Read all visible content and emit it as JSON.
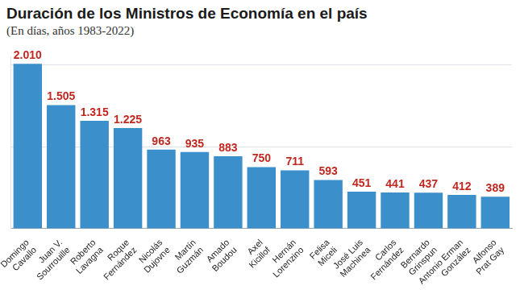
{
  "chart_data": {
    "type": "bar",
    "title": "Duración de los Ministros de Economía en el país",
    "subtitle": "(En días, años 1983-2022)",
    "categories": [
      [
        "Domingo",
        "Cavallo"
      ],
      [
        "Juan V.",
        "Sourrouille"
      ],
      [
        "Roberto",
        "Lavagna"
      ],
      [
        "Roque",
        "Fernández"
      ],
      [
        "Nicolás",
        "Dujovne"
      ],
      [
        "Martín",
        "Guzmán"
      ],
      [
        "Amado",
        "Boudou"
      ],
      [
        "Axel",
        "Kicillof"
      ],
      [
        "Hernán",
        "Lorenzino"
      ],
      [
        "Felisa",
        "Miceli"
      ],
      [
        "José Luis",
        "Machinea"
      ],
      [
        "Carlos",
        "Fernández"
      ],
      [
        "Bernardo",
        "Grinspun"
      ],
      [
        "Antonio Erman",
        "González"
      ],
      [
        "Alfonso",
        "Prat Gay"
      ]
    ],
    "values": [
      2010,
      1505,
      1315,
      1225,
      963,
      935,
      883,
      750,
      711,
      593,
      451,
      441,
      437,
      412,
      389
    ],
    "value_labels": [
      "2.010",
      "1.505",
      "1.315",
      "1.225",
      "963",
      "935",
      "883",
      "750",
      "711",
      "593",
      "451",
      "441",
      "437",
      "412",
      "389"
    ],
    "color": "#3b8fcb",
    "ylim": [
      0,
      2100
    ],
    "yticks": [
      0,
      1000,
      2000
    ],
    "grid": true,
    "data_labels": true,
    "tick_labels": "x"
  }
}
